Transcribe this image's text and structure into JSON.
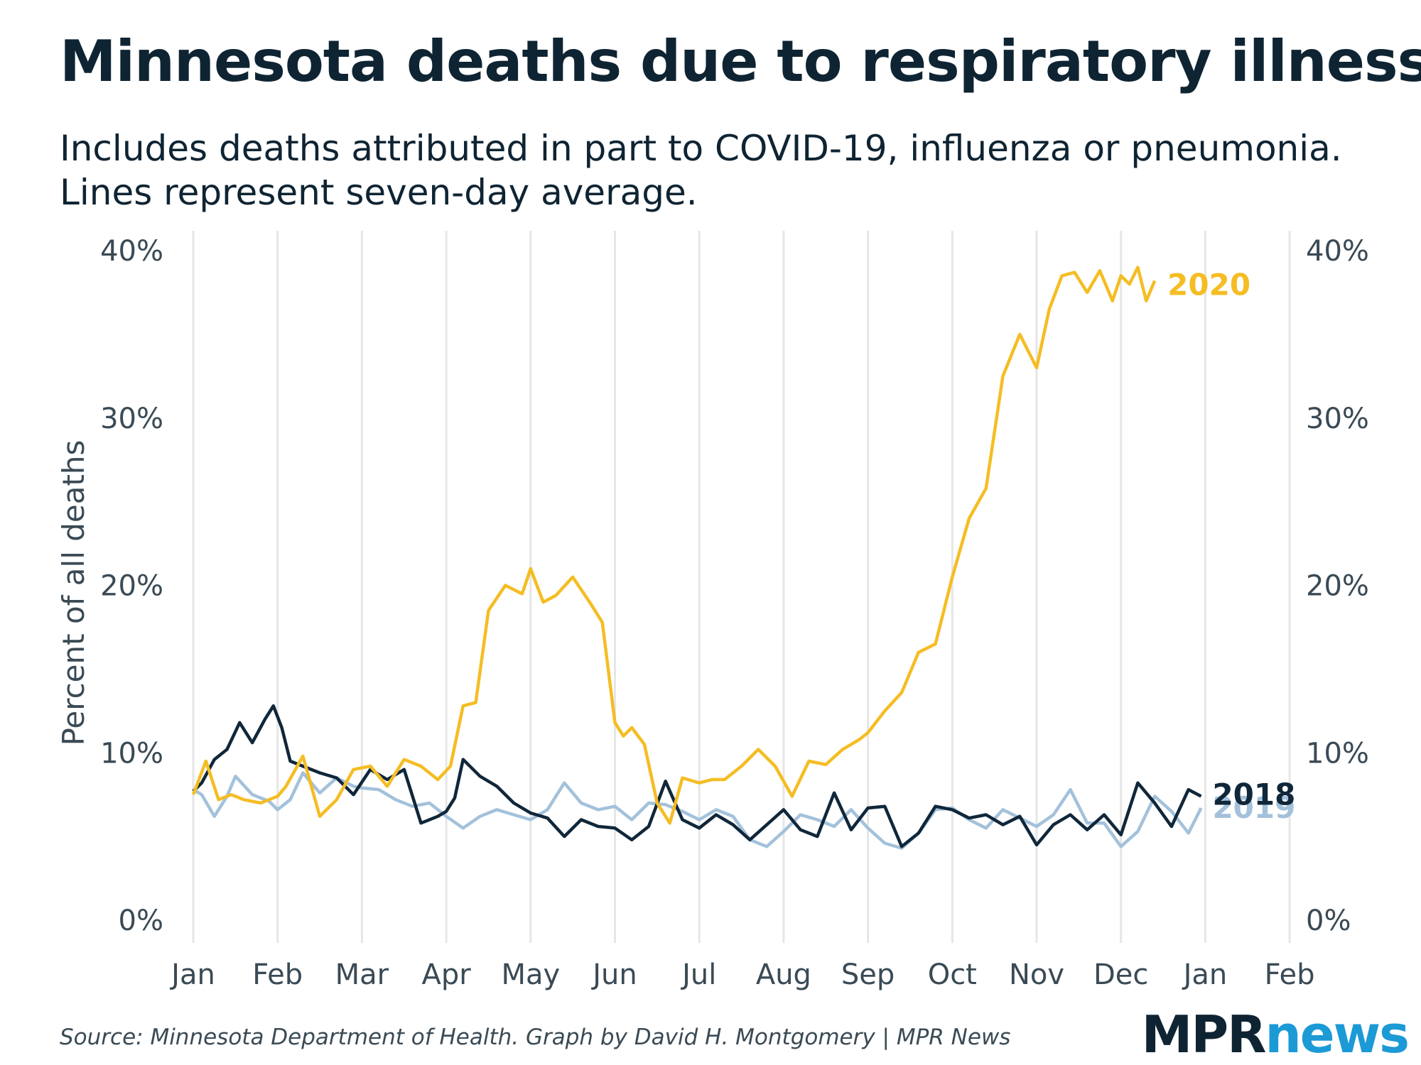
{
  "title": "Minnesota deaths due to respiratory illness",
  "subtitle": [
    "Includes deaths attributed in part to COVID-19, influenza or pneumonia.",
    "Lines represent seven-day average."
  ],
  "source": "Source: Minnesota Department of Health. Graph by David H. Montgomery | MPR News",
  "logo": {
    "part1": "MPR",
    "part2": "news"
  },
  "colors": {
    "2020": "#f5bd24",
    "2018": "#10273a",
    "2019": "#a3c1db",
    "grid": "#e6e6e6"
  },
  "chart_data": {
    "type": "line",
    "ylabel": "Percent of all deaths",
    "ylim": [
      0,
      40
    ],
    "yticks": [
      0,
      10,
      20,
      30,
      40
    ],
    "ytick_labels": [
      "0%",
      "10%",
      "20%",
      "30%",
      "40%"
    ],
    "ytick_labels_right": true,
    "x_months": [
      "Jan",
      "Feb",
      "Mar",
      "Apr",
      "May",
      "Jun",
      "Jul",
      "Aug",
      "Sep",
      "Oct",
      "Nov",
      "Dec",
      "Jan",
      "Feb"
    ],
    "x_unit": "month (0 = Jan 1)",
    "xlim": [
      0,
      13
    ],
    "grid": "vertical",
    "series": [
      {
        "name": "2019",
        "x": [
          0,
          0.1,
          0.25,
          0.4,
          0.5,
          0.7,
          0.9,
          1.0,
          1.15,
          1.3,
          1.5,
          1.7,
          1.9,
          2.0,
          2.2,
          2.4,
          2.6,
          2.8,
          3.0,
          3.2,
          3.4,
          3.6,
          3.8,
          4.0,
          4.2,
          4.4,
          4.6,
          4.8,
          5.0,
          5.2,
          5.4,
          5.6,
          5.8,
          6.0,
          6.2,
          6.4,
          6.6,
          6.8,
          7.0,
          7.2,
          7.4,
          7.6,
          7.8,
          8.0,
          8.2,
          8.4,
          8.6,
          8.8,
          9.0,
          9.2,
          9.4,
          9.6,
          9.8,
          10.0,
          10.2,
          10.4,
          10.6,
          10.8,
          11.0,
          11.2,
          11.4,
          11.6,
          11.8,
          11.95
        ],
        "values": [
          7.8,
          7.5,
          6.2,
          7.4,
          8.6,
          7.5,
          7.1,
          6.6,
          7.2,
          8.8,
          7.6,
          8.5,
          8.0,
          7.9,
          7.8,
          7.2,
          6.8,
          7.0,
          6.2,
          5.5,
          6.2,
          6.6,
          6.3,
          6.0,
          6.6,
          8.2,
          7.0,
          6.6,
          6.8,
          6.0,
          7.0,
          6.9,
          6.5,
          6.0,
          6.6,
          6.2,
          4.8,
          4.4,
          5.3,
          6.3,
          6.0,
          5.6,
          6.6,
          5.5,
          4.6,
          4.3,
          5.2,
          6.6,
          6.7,
          6.0,
          5.5,
          6.6,
          6.1,
          5.6,
          6.3,
          7.8,
          5.8,
          5.8,
          4.4,
          5.3,
          7.4,
          6.5,
          5.2,
          6.7
        ]
      },
      {
        "name": "2018",
        "x": [
          0,
          0.1,
          0.25,
          0.4,
          0.55,
          0.7,
          0.85,
          0.95,
          1.05,
          1.15,
          1.3,
          1.5,
          1.7,
          1.9,
          2.1,
          2.3,
          2.5,
          2.7,
          2.9,
          3.0,
          3.1,
          3.2,
          3.4,
          3.6,
          3.8,
          4.0,
          4.2,
          4.4,
          4.6,
          4.8,
          5.0,
          5.2,
          5.4,
          5.6,
          5.8,
          6.0,
          6.2,
          6.4,
          6.6,
          6.8,
          7.0,
          7.2,
          7.4,
          7.6,
          7.8,
          8.0,
          8.2,
          8.4,
          8.6,
          8.8,
          9.0,
          9.2,
          9.4,
          9.6,
          9.8,
          10.0,
          10.2,
          10.4,
          10.6,
          10.8,
          11.0,
          11.2,
          11.4,
          11.6,
          11.8,
          11.95
        ],
        "values": [
          7.7,
          8.2,
          9.6,
          10.2,
          11.8,
          10.6,
          12.0,
          12.8,
          11.5,
          9.5,
          9.2,
          8.8,
          8.5,
          7.5,
          9.0,
          8.4,
          9.0,
          5.8,
          6.2,
          6.5,
          7.3,
          9.6,
          8.6,
          8.0,
          7.0,
          6.4,
          6.1,
          5.0,
          6.0,
          5.6,
          5.5,
          4.8,
          5.6,
          8.3,
          6.0,
          5.5,
          6.3,
          5.7,
          4.8,
          5.7,
          6.6,
          5.4,
          5.0,
          7.6,
          5.4,
          6.7,
          6.8,
          4.4,
          5.2,
          6.8,
          6.6,
          6.1,
          6.3,
          5.7,
          6.2,
          4.5,
          5.7,
          6.3,
          5.4,
          6.3,
          5.1,
          8.2,
          7.0,
          5.6,
          7.8,
          7.4
        ]
      },
      {
        "name": "2020",
        "x": [
          0,
          0.15,
          0.3,
          0.45,
          0.6,
          0.8,
          1.0,
          1.1,
          1.3,
          1.5,
          1.7,
          1.9,
          2.1,
          2.3,
          2.5,
          2.7,
          2.9,
          3.05,
          3.2,
          3.35,
          3.5,
          3.7,
          3.9,
          4.0,
          4.15,
          4.3,
          4.5,
          4.7,
          4.85,
          5.0,
          5.1,
          5.2,
          5.35,
          5.5,
          5.65,
          5.8,
          6.0,
          6.15,
          6.3,
          6.5,
          6.7,
          6.9,
          7.1,
          7.3,
          7.5,
          7.7,
          7.9,
          8.0,
          8.2,
          8.4,
          8.6,
          8.8,
          9.0,
          9.2,
          9.4,
          9.6,
          9.8,
          10.0,
          10.15,
          10.3,
          10.45,
          10.6,
          10.75,
          10.9,
          11.0,
          11.1,
          11.2,
          11.3,
          11.4
        ],
        "values": [
          7.5,
          9.5,
          7.2,
          7.5,
          7.2,
          7.0,
          7.4,
          8.0,
          9.8,
          6.2,
          7.2,
          9.0,
          9.2,
          8.0,
          9.6,
          9.2,
          8.4,
          9.2,
          12.8,
          13.0,
          18.5,
          20.0,
          19.5,
          21.0,
          19.0,
          19.4,
          20.5,
          19.0,
          17.8,
          11.8,
          11.0,
          11.5,
          10.5,
          7.0,
          5.8,
          8.5,
          8.2,
          8.4,
          8.4,
          9.2,
          10.2,
          9.2,
          7.4,
          9.5,
          9.3,
          10.2,
          10.8,
          11.2,
          12.5,
          13.6,
          16.0,
          16.5,
          20.5,
          24.0,
          25.8,
          32.5,
          35.0,
          33.0,
          36.5,
          38.5,
          38.7,
          37.5,
          38.8,
          37.0,
          38.5,
          38.0,
          39.0,
          37.0,
          38.2
        ]
      }
    ],
    "end_labels": [
      "2020",
      "2018",
      "2019"
    ]
  }
}
